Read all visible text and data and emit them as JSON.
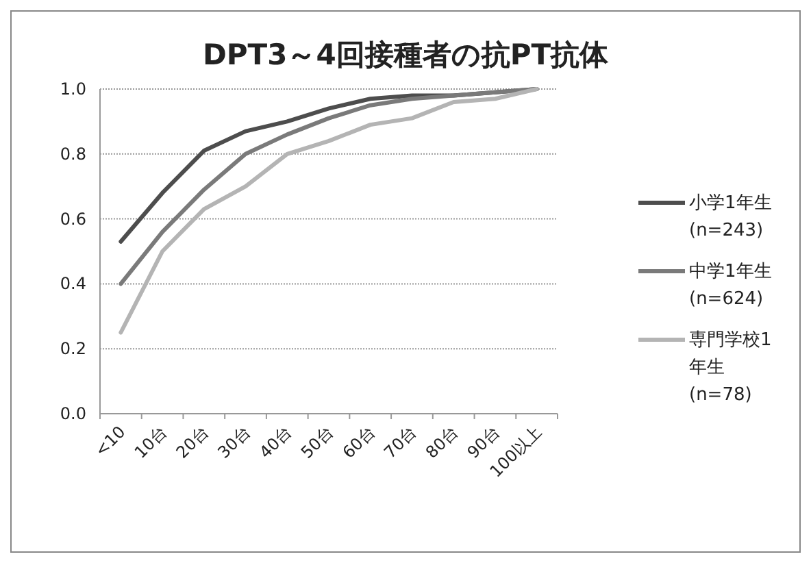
{
  "chart_data": {
    "type": "line",
    "title": "DPT3～4回接種者の抗PT抗体",
    "categories": [
      "<10",
      "10台",
      "20台",
      "30台",
      "40台",
      "50台",
      "60台",
      "70台",
      "80台",
      "90台",
      "100以上"
    ],
    "series": [
      {
        "name": "小学1年生 (n=243)",
        "color": "#4d4d4d",
        "values": [
          0.53,
          0.68,
          0.81,
          0.87,
          0.9,
          0.94,
          0.97,
          0.98,
          0.98,
          0.99,
          1.0
        ]
      },
      {
        "name": "中学1年生 (n=624)",
        "color": "#7a7a7a",
        "values": [
          0.4,
          0.56,
          0.69,
          0.8,
          0.86,
          0.91,
          0.95,
          0.97,
          0.98,
          0.99,
          1.0
        ]
      },
      {
        "name": "専門学校1年生 (n=78)",
        "color": "#b4b4b4",
        "values": [
          0.25,
          0.5,
          0.63,
          0.7,
          0.8,
          0.84,
          0.89,
          0.91,
          0.96,
          0.97,
          1.0
        ]
      }
    ],
    "ylim": [
      0,
      1
    ],
    "yticks": [
      {
        "value": 0,
        "label": "0.0"
      },
      {
        "value": 0.2,
        "label": "0.2"
      },
      {
        "value": 0.4,
        "label": "0.4"
      },
      {
        "value": 0.6,
        "label": "0.6"
      },
      {
        "value": 0.8,
        "label": "0.8"
      },
      {
        "value": 1,
        "label": "1.0"
      }
    ],
    "grid": "y",
    "legend": "right",
    "marker": "none",
    "line_style": "solid"
  }
}
